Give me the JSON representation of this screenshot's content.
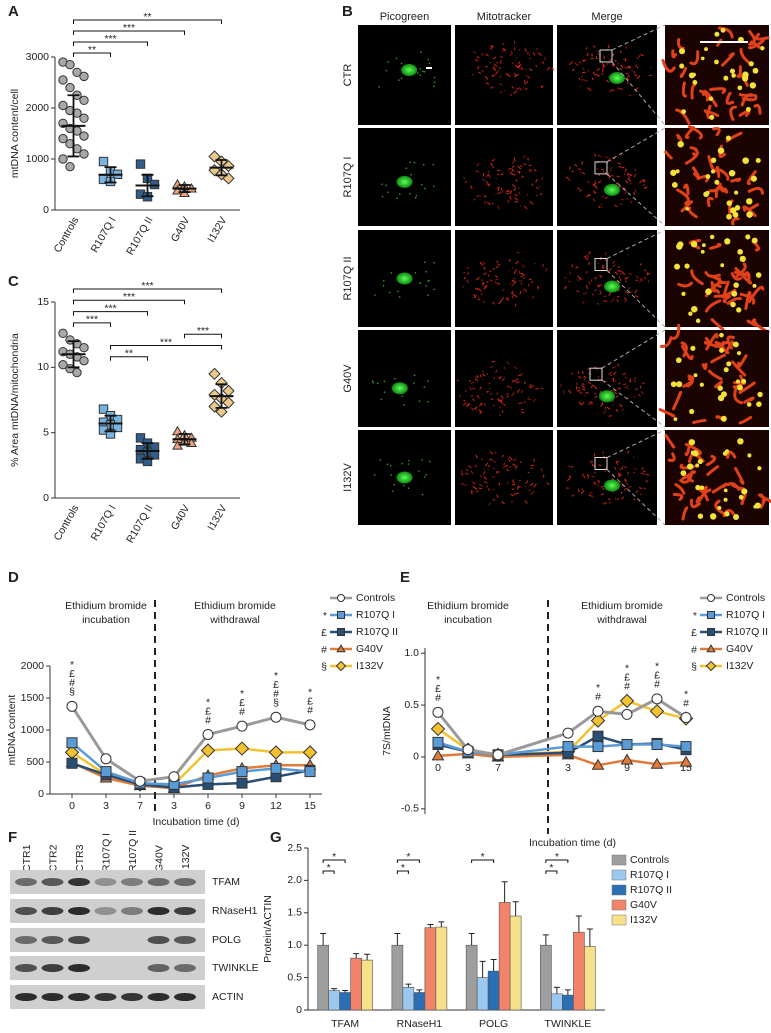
{
  "chart_data": [
    {
      "panel": "A",
      "type": "dotplot",
      "ylabel": "mtDNA content/cell",
      "categories": [
        "Controls",
        "R107Q I",
        "R107Q II",
        "G40V",
        "I132V"
      ],
      "points": [
        [
          2900,
          2850,
          2700,
          2620,
          2550,
          2400,
          2250,
          2150,
          2050,
          1950,
          1900,
          1800,
          1700,
          1600,
          1550,
          1450,
          1400,
          1300,
          1200,
          1100,
          1000,
          850
        ],
        [
          950,
          760,
          700,
          600,
          560
        ],
        [
          900,
          620,
          500,
          310,
          260
        ],
        [
          500,
          460,
          420,
          380,
          330
        ],
        [
          1050,
          950,
          860,
          780,
          700,
          620
        ]
      ],
      "mean": [
        1650,
        690,
        480,
        420,
        830
      ],
      "sd": [
        600,
        150,
        210,
        70,
        150
      ],
      "colors": [
        "#a8a8a8",
        "#79b4e0",
        "#2f5d8c",
        "#f0a27a",
        "#eac98a"
      ],
      "markers": [
        "circle",
        "square",
        "square",
        "triangle",
        "diamond"
      ],
      "ylim": [
        0,
        3000
      ],
      "yticks": [
        0,
        1000,
        2000,
        3000
      ],
      "significance": [
        {
          "between": [
            "Controls",
            "I132V"
          ],
          "label": "**"
        },
        {
          "between": [
            "Controls",
            "G40V"
          ],
          "label": "***"
        },
        {
          "between": [
            "Controls",
            "R107Q II"
          ],
          "label": "***"
        },
        {
          "between": [
            "Controls",
            "R107Q I"
          ],
          "label": "**"
        }
      ]
    },
    {
      "panel": "C",
      "type": "dotplot",
      "ylabel": "% Area mtDNA/mitochondria",
      "categories": [
        "Controls",
        "R107Q I",
        "R107Q II",
        "G40V",
        "I132V"
      ],
      "points": [
        [
          12.6,
          12.1,
          11.8,
          11.5,
          11.2,
          11.0,
          10.8,
          10.5,
          10.2,
          9.9,
          9.6
        ],
        [
          6.8,
          6.3,
          6.0,
          5.8,
          5.6,
          5.4,
          5.2,
          4.9
        ],
        [
          4.6,
          4.2,
          3.9,
          3.7,
          3.5,
          3.3,
          3.0,
          2.8
        ],
        [
          5.1,
          4.8,
          4.6,
          4.5,
          4.3,
          4.2,
          4.0
        ],
        [
          9.5,
          8.8,
          8.2,
          7.9,
          7.6,
          7.3,
          7.0,
          6.6
        ]
      ],
      "mean": [
        11.0,
        5.7,
        3.6,
        4.5,
        7.8
      ],
      "sd": [
        1.0,
        0.6,
        0.6,
        0.4,
        0.9
      ],
      "colors": [
        "#a8a8a8",
        "#79b4e0",
        "#2f5d8c",
        "#f0a27a",
        "#eac98a"
      ],
      "markers": [
        "circle",
        "square",
        "square",
        "triangle",
        "diamond"
      ],
      "ylim": [
        0,
        15
      ],
      "yticks": [
        0,
        5,
        10,
        15
      ],
      "significance": [
        {
          "between": [
            "Controls",
            "I132V"
          ],
          "label": "***"
        },
        {
          "between": [
            "Controls",
            "G40V"
          ],
          "label": "***"
        },
        {
          "between": [
            "Controls",
            "R107Q II"
          ],
          "label": "***"
        },
        {
          "between": [
            "Controls",
            "R107Q I"
          ],
          "label": "***"
        },
        {
          "between": [
            "G40V",
            "I132V"
          ],
          "label": "***"
        },
        {
          "between": [
            "R107Q I",
            "I132V"
          ],
          "label": "***"
        },
        {
          "between": [
            "R107Q I",
            "R107Q II"
          ],
          "label": "**"
        }
      ]
    },
    {
      "panel": "D",
      "type": "line",
      "ylabel": "mtDNA content",
      "xlabel": "Incubation time (d)",
      "annotations": [
        [
          "Ethidium bromide",
          "incubation"
        ],
        [
          "Ethidium bromide",
          "withdrawal"
        ]
      ],
      "categories": [
        "0",
        "3",
        "7",
        "3",
        "6",
        "9",
        "12",
        "15"
      ],
      "ylim": [
        0,
        2000
      ],
      "yticks": [
        0,
        500,
        1000,
        1500,
        2000
      ],
      "series": [
        {
          "name": "Controls",
          "color": "#9a9a9a",
          "marker_color": "#ffffff",
          "marker": "circle",
          "values": [
            1370,
            550,
            200,
            270,
            930,
            1060,
            1200,
            1080
          ]
        },
        {
          "name": "R107Q I",
          "symbol": "*",
          "color": "#5b9bd5",
          "marker": "square",
          "values": [
            800,
            350,
            170,
            150,
            250,
            350,
            400,
            350
          ]
        },
        {
          "name": "R107Q II",
          "symbol": "£",
          "color": "#2a4d73",
          "marker": "square",
          "values": [
            480,
            300,
            150,
            100,
            150,
            170,
            270,
            370
          ]
        },
        {
          "name": "G40V",
          "symbol": "#",
          "color": "#e07b39",
          "marker": "triangle",
          "values": [
            490,
            250,
            130,
            90,
            290,
            400,
            450,
            450
          ]
        },
        {
          "name": "I132V",
          "symbol": "§",
          "color": "#f2c230",
          "marker": "diamond",
          "values": [
            650,
            300,
            150,
            150,
            680,
            710,
            650,
            650
          ]
        }
      ],
      "significance": [
        [
          "*",
          "£",
          "#",
          "§"
        ],
        [],
        [],
        [],
        [
          "*",
          "£",
          "#"
        ],
        [
          "*",
          "£",
          "#"
        ],
        [
          "*",
          "£",
          "#",
          "§"
        ],
        [
          "*",
          "£",
          "#"
        ]
      ]
    },
    {
      "panel": "E",
      "type": "line",
      "ylabel": "7S/mtDNA",
      "xlabel": "Incubation time (d)",
      "annotations": [
        [
          "Ethidium bromide",
          "incubation"
        ],
        [
          "Ethidium bromide",
          "withdrawal"
        ]
      ],
      "categories": [
        "0",
        "3",
        "7",
        "3",
        null,
        "9",
        null,
        "15"
      ],
      "ylim": [
        -0.55,
        1.05
      ],
      "yticks": [
        -0.5,
        0,
        0.5,
        {
          "value": 1,
          "label": "1.0"
        }
      ],
      "series": [
        {
          "name": "Controls",
          "color": "#9a9a9a",
          "marker_color": "#ffffff",
          "marker": "circle",
          "values": [
            0.43,
            0.07,
            0.02,
            0.23,
            0.44,
            0.41,
            0.56,
            0.38
          ]
        },
        {
          "name": "R107Q I",
          "symbol": "*",
          "color": "#5b9bd5",
          "marker": "square",
          "values": [
            0.14,
            0.05,
            0.02,
            0.1,
            0.1,
            0.12,
            0.12,
            0.1
          ]
        },
        {
          "name": "R107Q II",
          "symbol": "£",
          "color": "#2a4d73",
          "marker": "square",
          "values": [
            0.12,
            0.05,
            0.02,
            0.04,
            0.2,
            0.12,
            0.13,
            0.07
          ]
        },
        {
          "name": "G40V",
          "symbol": "#",
          "color": "#e07b39",
          "marker": "triangle",
          "values": [
            0.01,
            0.03,
            0.0,
            0.02,
            -0.08,
            -0.03,
            -0.07,
            -0.05
          ]
        },
        {
          "name": "I132V",
          "symbol": "§",
          "color": "#f2c230",
          "marker": "diamond",
          "values": [
            0.27,
            0.07,
            0.02,
            0.05,
            0.35,
            0.54,
            0.44,
            0.37
          ]
        }
      ],
      "significance": [
        [
          "*",
          "£",
          "#"
        ],
        [],
        [],
        [],
        [
          "*",
          "#"
        ],
        [
          "*",
          "£",
          "#"
        ],
        [
          "*",
          "£",
          "#"
        ],
        [
          "*",
          "#"
        ]
      ]
    },
    {
      "panel": "G",
      "type": "bar",
      "ylabel": "Protein/ACTIN",
      "categories": [
        "TFAM",
        "RNaseH1",
        "POLG",
        "TWINKLE"
      ],
      "ylim": [
        0,
        2.5
      ],
      "yticks": [
        0,
        0.5,
        {
          "value": 1,
          "label": "1.0"
        },
        1.5,
        {
          "value": 2,
          "label": "2.0"
        },
        2.5
      ],
      "series": [
        {
          "name": "Controls",
          "color": "#9e9e9e",
          "values": [
            1.0,
            1.0,
            1.0,
            1.0
          ],
          "errors": [
            0.18,
            0.18,
            0.18,
            0.16
          ]
        },
        {
          "name": "R107Q I",
          "color": "#9cc7ef",
          "values": [
            0.3,
            0.35,
            0.5,
            0.25
          ],
          "errors": [
            0.03,
            0.05,
            0.25,
            0.1
          ]
        },
        {
          "name": "R107Q II",
          "color": "#2a6fb3",
          "values": [
            0.27,
            0.27,
            0.6,
            0.23
          ],
          "errors": [
            0.03,
            0.04,
            0.18,
            0.08
          ]
        },
        {
          "name": "G40V",
          "color": "#f2836b",
          "values": [
            0.8,
            1.27,
            1.66,
            1.2
          ],
          "errors": [
            0.07,
            0.05,
            0.32,
            0.25
          ]
        },
        {
          "name": "I132V",
          "color": "#f7e08a",
          "values": [
            0.77,
            1.28,
            1.45,
            0.98
          ],
          "errors": [
            0.09,
            0.08,
            0.22,
            0.27
          ]
        }
      ],
      "significance": [
        {
          "category": "TFAM",
          "between": [
            "Controls",
            "R107Q II"
          ],
          "label": "*"
        },
        {
          "category": "TFAM",
          "between": [
            "Controls",
            "R107Q I"
          ],
          "label": "*"
        },
        {
          "category": "RNaseH1",
          "between": [
            "Controls",
            "R107Q II"
          ],
          "label": "*"
        },
        {
          "category": "RNaseH1",
          "between": [
            "Controls",
            "R107Q I"
          ],
          "label": "*"
        },
        {
          "category": "POLG",
          "between": [
            "Controls",
            "R107Q II"
          ],
          "label": "*"
        },
        {
          "category": "TWINKLE",
          "between": [
            "Controls",
            "R107Q II"
          ],
          "label": "*"
        },
        {
          "category": "TWINKLE",
          "between": [
            "Controls",
            "R107Q I"
          ],
          "label": "*"
        }
      ]
    }
  ],
  "microscopy": {
    "panel": "B",
    "columns": [
      "Picogreen",
      "Mitotracker",
      "Merge"
    ],
    "rows": [
      "CTR",
      "R107Q I",
      "R107Q II",
      "G40V",
      "I132V"
    ]
  },
  "western_blot": {
    "panel": "F",
    "lanes": [
      "CTR1",
      "CTR2",
      "CTR3",
      "R107Q I",
      "R107Q II",
      "G40V",
      "I132V"
    ],
    "proteins": [
      "TFAM",
      "RNaseH1",
      "POLG",
      "TWINKLE",
      "ACTIN"
    ]
  }
}
